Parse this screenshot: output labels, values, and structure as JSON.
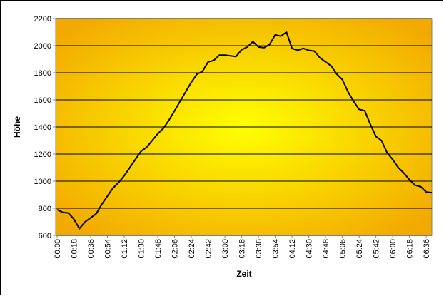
{
  "chart_data": {
    "type": "line",
    "x_label": "Zeit",
    "y_label": "Höhe",
    "categories": [
      "00:00",
      null,
      null,
      "00:18",
      null,
      null,
      "00:36",
      null,
      null,
      "00:54",
      null,
      null,
      "01:12",
      null,
      null,
      "01:30",
      null,
      null,
      "01:48",
      null,
      null,
      "02:06",
      null,
      null,
      "02:24",
      null,
      null,
      "02:42",
      null,
      null,
      "03:00",
      null,
      null,
      "03:18",
      null,
      null,
      "03:36",
      null,
      null,
      "03:54",
      null,
      null,
      "04:12",
      null,
      null,
      "04:30",
      null,
      null,
      "04:48",
      null,
      null,
      "05:06",
      null,
      null,
      "05:24",
      null,
      null,
      "05:42",
      null,
      null,
      "06:00",
      null,
      null,
      "06:18",
      null,
      null,
      "06:36",
      null
    ],
    "values": [
      790,
      770,
      765,
      720,
      650,
      700,
      730,
      760,
      830,
      890,
      950,
      990,
      1040,
      1100,
      1160,
      1220,
      1250,
      1300,
      1350,
      1390,
      1450,
      1520,
      1590,
      1660,
      1730,
      1790,
      1810,
      1880,
      1890,
      1930,
      1930,
      1925,
      1920,
      1970,
      1990,
      2030,
      1990,
      1985,
      2010,
      2080,
      2070,
      2100,
      1980,
      1965,
      1980,
      1965,
      1960,
      1910,
      1880,
      1850,
      1790,
      1750,
      1660,
      1590,
      1530,
      1520,
      1420,
      1330,
      1300,
      1210,
      1160,
      1100,
      1060,
      1010,
      970,
      960,
      920,
      915
    ],
    "color": "#000000",
    "ylim": [
      600,
      2200
    ],
    "yticks": [
      600,
      800,
      1000,
      1200,
      1400,
      1600,
      1800,
      2000,
      2200
    ],
    "grid": true
  }
}
